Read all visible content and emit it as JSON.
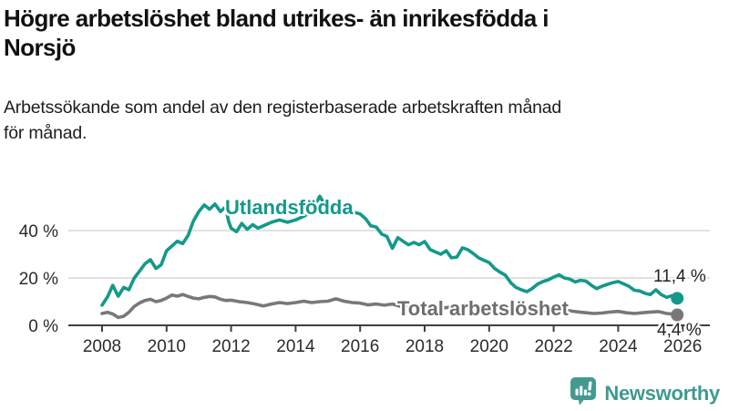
{
  "title": "Högre arbetslöshet bland utrikes- än inrikesfödda i Norsjö",
  "title_lines": [
    "Högre arbetslöshet bland utrikes- än inrikesfödda i",
    "Norsjö"
  ],
  "subtitle": "Arbetssökande som andel av den registerbaserade arbetskraften månad för månad.",
  "subtitle_lines": [
    "Arbetssökande som andel av den registerbaserade arbetskraften månad",
    "för månad."
  ],
  "branding": {
    "logo_text": "Newsworthy",
    "logo_color": "#459a90"
  },
  "colors": {
    "accent_teal": "#13998a",
    "line_gray": "#787878",
    "gridline": "#d9d9d9",
    "axis": "#3f3f3f",
    "axis_text": "#2b2b2b",
    "background": "#ffffff"
  },
  "chart_data": {
    "type": "line",
    "title": "Högre arbetslöshet bland utrikes- än inrikesfödda i Norsjö",
    "subtitle": "Arbetssökande som andel av den registerbaserade arbetskraften månad för månad.",
    "xlabel": "",
    "ylabel": "",
    "grid": true,
    "legend": "inline-labels",
    "xlim": [
      2007,
      2026.8
    ],
    "ylim": [
      0,
      57
    ],
    "x_ticks": [
      2008,
      2010,
      2012,
      2014,
      2016,
      2018,
      2020,
      2022,
      2024,
      2026
    ],
    "y_ticks": [
      {
        "value": 0,
        "label": "0 %"
      },
      {
        "value": 20,
        "label": "20 %"
      },
      {
        "value": 40,
        "label": "40 %"
      }
    ],
    "series": [
      {
        "name": "Utlandsfödda",
        "color": "#13998a",
        "end_value": 11.4,
        "end_label": "11,4 %",
        "points": [
          [
            2008.0,
            8.5
          ],
          [
            2008.17,
            12
          ],
          [
            2008.33,
            16.9
          ],
          [
            2008.5,
            12.3
          ],
          [
            2008.67,
            16
          ],
          [
            2008.83,
            15
          ],
          [
            2009.0,
            20
          ],
          [
            2009.17,
            23
          ],
          [
            2009.33,
            26
          ],
          [
            2009.5,
            27.7
          ],
          [
            2009.67,
            24
          ],
          [
            2009.83,
            25.5
          ],
          [
            2010.0,
            31.5
          ],
          [
            2010.17,
            33.5
          ],
          [
            2010.33,
            35.5
          ],
          [
            2010.5,
            34.5
          ],
          [
            2010.67,
            38
          ],
          [
            2010.83,
            44
          ],
          [
            2011.0,
            48
          ],
          [
            2011.17,
            50.8
          ],
          [
            2011.33,
            49
          ],
          [
            2011.5,
            51.2
          ],
          [
            2011.67,
            48
          ],
          [
            2011.83,
            50
          ],
          [
            2011.92,
            44
          ],
          [
            2012.0,
            41
          ],
          [
            2012.17,
            39.5
          ],
          [
            2012.33,
            43
          ],
          [
            2012.5,
            40.5
          ],
          [
            2012.67,
            42.5
          ],
          [
            2012.83,
            41
          ],
          [
            2013.0,
            42
          ],
          [
            2013.25,
            43.5
          ],
          [
            2013.5,
            44.5
          ],
          [
            2013.75,
            43.5
          ],
          [
            2014.0,
            44.5
          ],
          [
            2014.25,
            46
          ],
          [
            2014.5,
            48
          ],
          [
            2014.75,
            54.5
          ],
          [
            2014.92,
            50.5
          ],
          [
            2015.0,
            52
          ],
          [
            2015.17,
            49
          ],
          [
            2015.33,
            50.5
          ],
          [
            2015.5,
            49
          ],
          [
            2015.75,
            48
          ],
          [
            2016.0,
            47
          ],
          [
            2016.17,
            45
          ],
          [
            2016.33,
            42
          ],
          [
            2016.5,
            41.5
          ],
          [
            2016.67,
            38.5
          ],
          [
            2016.83,
            37.5
          ],
          [
            2017.0,
            32.5
          ],
          [
            2017.17,
            37
          ],
          [
            2017.33,
            35.5
          ],
          [
            2017.5,
            34
          ],
          [
            2017.67,
            35
          ],
          [
            2017.83,
            34
          ],
          [
            2018.0,
            35.4
          ],
          [
            2018.17,
            32
          ],
          [
            2018.33,
            31
          ],
          [
            2018.5,
            30
          ],
          [
            2018.67,
            31.5
          ],
          [
            2018.83,
            28.5
          ],
          [
            2019.0,
            28.8
          ],
          [
            2019.17,
            32.7
          ],
          [
            2019.33,
            32
          ],
          [
            2019.5,
            30.4
          ],
          [
            2019.67,
            28.5
          ],
          [
            2019.83,
            27.5
          ],
          [
            2020.0,
            26.5
          ],
          [
            2020.17,
            24
          ],
          [
            2020.33,
            22.5
          ],
          [
            2020.5,
            21.2
          ],
          [
            2020.67,
            18
          ],
          [
            2020.83,
            16
          ],
          [
            2021.0,
            15
          ],
          [
            2021.17,
            14.2
          ],
          [
            2021.33,
            15.5
          ],
          [
            2021.5,
            17.4
          ],
          [
            2021.67,
            18.5
          ],
          [
            2021.83,
            19.2
          ],
          [
            2022.0,
            20.4
          ],
          [
            2022.17,
            21.3
          ],
          [
            2022.33,
            20
          ],
          [
            2022.5,
            19.5
          ],
          [
            2022.67,
            18.3
          ],
          [
            2022.83,
            19
          ],
          [
            2023.0,
            18.7
          ],
          [
            2023.17,
            16.9
          ],
          [
            2023.33,
            15.5
          ],
          [
            2023.5,
            16.5
          ],
          [
            2023.67,
            17.3
          ],
          [
            2023.83,
            18
          ],
          [
            2024.0,
            18.5
          ],
          [
            2024.17,
            17.5
          ],
          [
            2024.33,
            16.5
          ],
          [
            2024.5,
            14.8
          ],
          [
            2024.67,
            14.5
          ],
          [
            2024.83,
            13.5
          ],
          [
            2025.0,
            13
          ],
          [
            2025.17,
            15
          ],
          [
            2025.33,
            13
          ],
          [
            2025.5,
            11.8
          ],
          [
            2025.67,
            12.5
          ],
          [
            2025.83,
            11.4
          ]
        ]
      },
      {
        "name": "Total arbetslöshet",
        "color": "#787878",
        "end_value": 4.4,
        "end_label": "4,4 %",
        "points": [
          [
            2008.0,
            5
          ],
          [
            2008.17,
            5.5
          ],
          [
            2008.33,
            4.8
          ],
          [
            2008.5,
            3.3
          ],
          [
            2008.67,
            3.8
          ],
          [
            2008.83,
            5.5
          ],
          [
            2009.0,
            8
          ],
          [
            2009.17,
            9.5
          ],
          [
            2009.33,
            10.5
          ],
          [
            2009.5,
            11
          ],
          [
            2009.67,
            10
          ],
          [
            2009.83,
            10.5
          ],
          [
            2010.0,
            11.5
          ],
          [
            2010.17,
            12.8
          ],
          [
            2010.33,
            12.3
          ],
          [
            2010.5,
            13
          ],
          [
            2010.67,
            12.2
          ],
          [
            2010.83,
            11.5
          ],
          [
            2011.0,
            11.2
          ],
          [
            2011.17,
            11.8
          ],
          [
            2011.33,
            12.2
          ],
          [
            2011.5,
            12
          ],
          [
            2011.67,
            11
          ],
          [
            2011.83,
            10.5
          ],
          [
            2012.0,
            10.6
          ],
          [
            2012.25,
            10
          ],
          [
            2012.5,
            9.6
          ],
          [
            2012.75,
            9
          ],
          [
            2013.0,
            8.2
          ],
          [
            2013.25,
            9
          ],
          [
            2013.5,
            9.6
          ],
          [
            2013.75,
            9.2
          ],
          [
            2014.0,
            9.6
          ],
          [
            2014.25,
            10.2
          ],
          [
            2014.5,
            9.6
          ],
          [
            2014.75,
            10
          ],
          [
            2015.0,
            10.2
          ],
          [
            2015.25,
            11.2
          ],
          [
            2015.5,
            10.2
          ],
          [
            2015.75,
            9.6
          ],
          [
            2016.0,
            9.4
          ],
          [
            2016.25,
            8.6
          ],
          [
            2016.5,
            9
          ],
          [
            2016.75,
            8.5
          ],
          [
            2017.0,
            9
          ],
          [
            2017.25,
            8
          ],
          [
            2017.5,
            7.6
          ],
          [
            2017.75,
            8
          ],
          [
            2018.0,
            8
          ],
          [
            2018.25,
            7.5
          ],
          [
            2018.5,
            7.2
          ],
          [
            2018.75,
            7.6
          ],
          [
            2019.0,
            7.2
          ],
          [
            2019.25,
            7.6
          ],
          [
            2019.5,
            7.2
          ],
          [
            2019.75,
            6.8
          ],
          [
            2020.0,
            7
          ],
          [
            2020.25,
            7.6
          ],
          [
            2020.5,
            7.2
          ],
          [
            2020.75,
            6.8
          ],
          [
            2021.0,
            6.6
          ],
          [
            2021.33,
            6.2
          ],
          [
            2021.67,
            6.4
          ],
          [
            2022.0,
            6.2
          ],
          [
            2022.33,
            6.4
          ],
          [
            2022.67,
            5.8
          ],
          [
            2023.0,
            5.3
          ],
          [
            2023.25,
            5
          ],
          [
            2023.5,
            5.2
          ],
          [
            2023.75,
            5.6
          ],
          [
            2024.0,
            5.9
          ],
          [
            2024.25,
            5.3
          ],
          [
            2024.5,
            5
          ],
          [
            2024.75,
            5.3
          ],
          [
            2025.0,
            5.6
          ],
          [
            2025.25,
            5.8
          ],
          [
            2025.5,
            5
          ],
          [
            2025.67,
            4.8
          ],
          [
            2025.83,
            4.4
          ]
        ]
      }
    ]
  }
}
